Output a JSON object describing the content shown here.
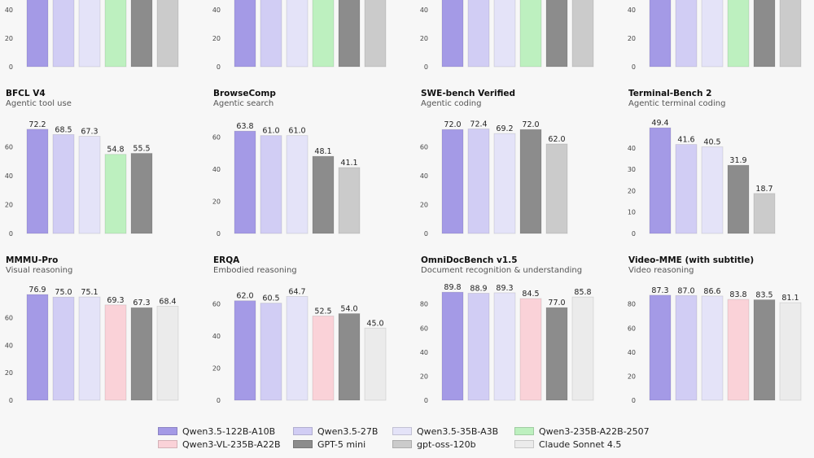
{
  "legend": {
    "items": [
      {
        "key": "q122",
        "label": "Qwen3.5-122B-A10B",
        "color": "#a49ae6"
      },
      {
        "key": "q27",
        "label": "Qwen3.5-27B",
        "color": "#d1cdf4"
      },
      {
        "key": "q35",
        "label": "Qwen3.5-35B-A3B",
        "color": "#e4e3f8"
      },
      {
        "key": "q235",
        "label": "Qwen3-235B-A22B-2507",
        "color": "#bdf0bf"
      },
      {
        "key": "qvl",
        "label": "Qwen3-VL-235B-A22B",
        "color": "#fad2d8"
      },
      {
        "key": "gpt5",
        "label": "GPT-5 mini",
        "color": "#8c8c8c"
      },
      {
        "key": "oss",
        "label": "gpt-oss-120b",
        "color": "#cbcbcb"
      },
      {
        "key": "claude",
        "label": "Claude Sonnet 4.5",
        "color": "#ebebeb"
      }
    ]
  },
  "chart_data": [
    {
      "type": "bar",
      "title": "",
      "subtitle": "",
      "row": 0,
      "col": 0,
      "yticks": [
        0,
        20,
        40
      ],
      "bars": [
        {
          "key": "q122",
          "value": null
        },
        {
          "key": "q27",
          "value": null
        },
        {
          "key": "q35",
          "value": null
        },
        {
          "key": "q235",
          "value": null
        },
        {
          "key": "gpt5",
          "value": null
        },
        {
          "key": "oss",
          "value": null
        }
      ]
    },
    {
      "type": "bar",
      "title": "",
      "subtitle": "",
      "row": 0,
      "col": 1,
      "yticks": [
        0,
        20,
        40
      ],
      "bars": [
        {
          "key": "q122",
          "value": null
        },
        {
          "key": "q27",
          "value": null
        },
        {
          "key": "q35",
          "value": null
        },
        {
          "key": "q235",
          "value": null
        },
        {
          "key": "gpt5",
          "value": null
        },
        {
          "key": "oss",
          "value": null
        }
      ]
    },
    {
      "type": "bar",
      "title": "",
      "subtitle": "",
      "row": 0,
      "col": 2,
      "yticks": [
        0,
        20,
        40
      ],
      "bars": [
        {
          "key": "q122",
          "value": null
        },
        {
          "key": "q27",
          "value": null
        },
        {
          "key": "q35",
          "value": null
        },
        {
          "key": "q235",
          "value": null
        },
        {
          "key": "gpt5",
          "value": null
        },
        {
          "key": "oss",
          "value": null
        }
      ]
    },
    {
      "type": "bar",
      "title": "",
      "subtitle": "",
      "row": 0,
      "col": 3,
      "yticks": [
        0,
        20,
        40
      ],
      "bars": [
        {
          "key": "q122",
          "value": null
        },
        {
          "key": "q27",
          "value": null
        },
        {
          "key": "q35",
          "value": null
        },
        {
          "key": "q235",
          "value": null
        },
        {
          "key": "gpt5",
          "value": null
        },
        {
          "key": "oss",
          "value": null
        }
      ]
    },
    {
      "type": "bar",
      "title": "BFCL V4",
      "subtitle": "Agentic tool use",
      "row": 1,
      "col": 0,
      "ymax": 80,
      "yticks": [
        0,
        20,
        40,
        60
      ],
      "bars": [
        {
          "key": "q122",
          "value": 72.2
        },
        {
          "key": "q27",
          "value": 68.5
        },
        {
          "key": "q35",
          "value": 67.3
        },
        {
          "key": "q235",
          "value": 54.8
        },
        {
          "key": "gpt5",
          "value": 55.5
        }
      ]
    },
    {
      "type": "bar",
      "title": "BrowseComp",
      "subtitle": "Agentic search",
      "row": 1,
      "col": 1,
      "ymax": 72,
      "yticks": [
        0,
        20,
        40,
        60
      ],
      "bars": [
        {
          "key": "q122",
          "value": 63.8
        },
        {
          "key": "q27",
          "value": 61.0
        },
        {
          "key": "q35",
          "value": 61.0
        },
        {
          "key": "gpt5",
          "value": 48.1
        },
        {
          "key": "oss",
          "value": 41.1
        }
      ]
    },
    {
      "type": "bar",
      "title": "SWE-bench Verified",
      "subtitle": "Agentic coding",
      "row": 1,
      "col": 2,
      "ymax": 80,
      "yticks": [
        0,
        20,
        40,
        60
      ],
      "bars": [
        {
          "key": "q122",
          "value": 72.0
        },
        {
          "key": "q27",
          "value": 72.4
        },
        {
          "key": "q35",
          "value": 69.2
        },
        {
          "key": "gpt5",
          "value": 72.0
        },
        {
          "key": "oss",
          "value": 62.0
        }
      ]
    },
    {
      "type": "bar",
      "title": "Terminal-Bench 2",
      "subtitle": "Agentic terminal coding",
      "row": 1,
      "col": 3,
      "ymax": 54,
      "yticks": [
        0,
        10,
        20,
        30,
        40
      ],
      "bars": [
        {
          "key": "q122",
          "value": 49.4
        },
        {
          "key": "q27",
          "value": 41.6
        },
        {
          "key": "q35",
          "value": 40.5
        },
        {
          "key": "gpt5",
          "value": 31.9
        },
        {
          "key": "oss",
          "value": 18.7
        }
      ]
    },
    {
      "type": "bar",
      "title": "MMMU-Pro",
      "subtitle": "Visual reasoning",
      "row": 2,
      "col": 0,
      "ymax": 84,
      "yticks": [
        0,
        20,
        40,
        60
      ],
      "bars": [
        {
          "key": "q122",
          "value": 76.9
        },
        {
          "key": "q27",
          "value": 75.0
        },
        {
          "key": "q35",
          "value": 75.1
        },
        {
          "key": "qvl",
          "value": 69.3
        },
        {
          "key": "gpt5",
          "value": 67.3
        },
        {
          "key": "claude",
          "value": 68.4
        }
      ]
    },
    {
      "type": "bar",
      "title": "ERQA",
      "subtitle": "Embodied reasoning",
      "row": 2,
      "col": 1,
      "ymax": 72,
      "yticks": [
        0,
        20,
        40,
        60
      ],
      "bars": [
        {
          "key": "q122",
          "value": 62.0
        },
        {
          "key": "q27",
          "value": 60.5
        },
        {
          "key": "q35",
          "value": 64.7
        },
        {
          "key": "qvl",
          "value": 52.5
        },
        {
          "key": "gpt5",
          "value": 54.0
        },
        {
          "key": "claude",
          "value": 45.0
        }
      ]
    },
    {
      "type": "bar",
      "title": "OmniDocBench v1.5",
      "subtitle": "Document recognition & understanding",
      "row": 2,
      "col": 2,
      "ymax": 96,
      "yticks": [
        0,
        20,
        40,
        60,
        80
      ],
      "bars": [
        {
          "key": "q122",
          "value": 89.8
        },
        {
          "key": "q27",
          "value": 88.9
        },
        {
          "key": "q35",
          "value": 89.3
        },
        {
          "key": "qvl",
          "value": 84.5
        },
        {
          "key": "gpt5",
          "value": 77.0
        },
        {
          "key": "claude",
          "value": 85.8
        }
      ]
    },
    {
      "type": "bar",
      "title": "Video-MME (with subtitle)",
      "subtitle": "Video reasoning",
      "row": 2,
      "col": 3,
      "ymax": 96,
      "yticks": [
        0,
        20,
        40,
        60,
        80
      ],
      "bars": [
        {
          "key": "q122",
          "value": 87.3
        },
        {
          "key": "q27",
          "value": 87.0
        },
        {
          "key": "q35",
          "value": 86.6
        },
        {
          "key": "qvl",
          "value": 83.8
        },
        {
          "key": "gpt5",
          "value": 83.5
        },
        {
          "key": "claude",
          "value": 81.1
        }
      ]
    }
  ]
}
